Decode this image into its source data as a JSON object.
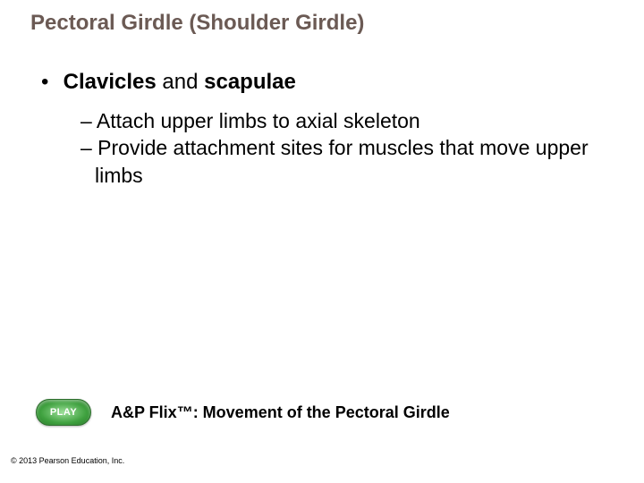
{
  "title": "Pectoral Girdle (Shoulder Girdle)",
  "main_bullet": {
    "dot": "•",
    "prefix": "Clavicles",
    "mid": " and ",
    "suffix": "scapulae"
  },
  "sub_bullets": [
    "– Attach upper limbs to axial skeleton",
    "– Provide attachment sites for muscles that move upper limbs"
  ],
  "play": {
    "button_label": "PLAY",
    "caption": "A&P Flix™: Movement of the Pectoral Girdle"
  },
  "copyright": "© 2013 Pearson Education, Inc.",
  "colors": {
    "title_color": "#6b5a54",
    "text_color": "#000000",
    "play_green_light": "#9de09a",
    "play_green_dark": "#2a7a2a",
    "background": "#ffffff"
  },
  "typography": {
    "title_fontsize": 24,
    "body_fontsize": 24,
    "sub_fontsize": 23,
    "play_caption_fontsize": 18,
    "copyright_fontsize": 9
  }
}
